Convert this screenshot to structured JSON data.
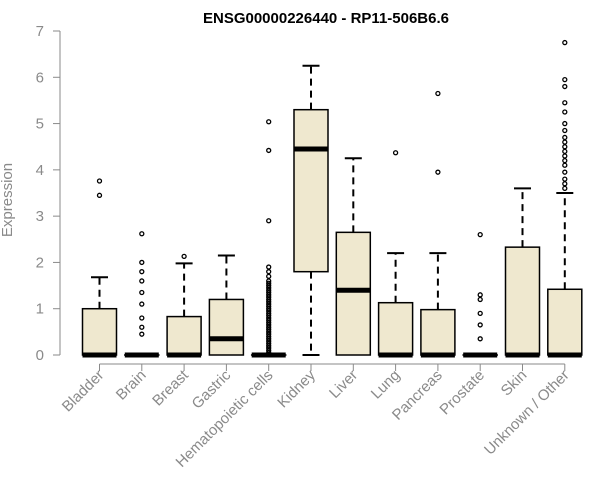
{
  "chart_data": {
    "type": "boxplot",
    "title": "ENSG00000226440 - RP11-506B6.6",
    "xlabel": "",
    "ylabel": "Expression",
    "ylim": [
      0,
      7
    ],
    "yticks": [
      0,
      1,
      2,
      3,
      4,
      5,
      6,
      7
    ],
    "grid": false,
    "box_fill": "#EFE8CF",
    "box_stroke": "#000000",
    "axis_color": "#8a8a8a",
    "categories": [
      "Bladder",
      "Brain",
      "Breast",
      "Gastric",
      "Hematopoietic cells",
      "Kidney",
      "Liver",
      "Lung",
      "Pancreas",
      "Prostate",
      "Skin",
      "Unknown / Other"
    ],
    "boxes": [
      {
        "category": "Bladder",
        "min": 0,
        "q1": 0,
        "median": 0,
        "q3": 1.0,
        "max": 1.68,
        "outliers": [
          3.45,
          3.76
        ]
      },
      {
        "category": "Brain",
        "min": 0,
        "q1": 0,
        "median": 0,
        "q3": 0,
        "max": 0,
        "outliers": [
          0.45,
          0.6,
          0.8,
          1.1,
          1.35,
          1.6,
          1.8,
          2.0,
          2.62
        ]
      },
      {
        "category": "Breast",
        "min": 0,
        "q1": 0,
        "median": 0,
        "q3": 0.83,
        "max": 1.98,
        "outliers": [
          2.13
        ]
      },
      {
        "category": "Gastric",
        "min": 0,
        "q1": 0,
        "median": 0.35,
        "q3": 1.2,
        "max": 2.15,
        "outliers": []
      },
      {
        "category": "Hematopoietic cells",
        "min": 0,
        "q1": 0,
        "median": 0,
        "q3": 0,
        "max": 0,
        "outliers": [
          0.05,
          0.1,
          0.15,
          0.2,
          0.25,
          0.3,
          0.35,
          0.4,
          0.45,
          0.5,
          0.55,
          0.6,
          0.65,
          0.7,
          0.75,
          0.8,
          0.85,
          0.9,
          0.95,
          1.0,
          1.05,
          1.1,
          1.15,
          1.2,
          1.25,
          1.3,
          1.35,
          1.4,
          1.45,
          1.5,
          1.55,
          1.6,
          1.7,
          1.8,
          1.9,
          2.9,
          4.42,
          5.04
        ]
      },
      {
        "category": "Kidney",
        "min": 0,
        "q1": 1.8,
        "median": 4.45,
        "q3": 5.3,
        "max": 6.25,
        "outliers": []
      },
      {
        "category": "Liver",
        "min": 0,
        "q1": 0,
        "median": 1.4,
        "q3": 2.65,
        "max": 4.25,
        "outliers": []
      },
      {
        "category": "Lung",
        "min": 0,
        "q1": 0,
        "median": 0,
        "q3": 1.13,
        "max": 2.2,
        "outliers": [
          4.37
        ]
      },
      {
        "category": "Pancreas",
        "min": 0,
        "q1": 0,
        "median": 0,
        "q3": 0.98,
        "max": 2.2,
        "outliers": [
          3.95,
          5.65
        ]
      },
      {
        "category": "Prostate",
        "min": 0,
        "q1": 0,
        "median": 0,
        "q3": 0,
        "max": 0,
        "outliers": [
          0.35,
          0.65,
          0.9,
          1.2,
          1.3,
          2.6
        ]
      },
      {
        "category": "Skin",
        "min": 0,
        "q1": 0,
        "median": 0,
        "q3": 2.33,
        "max": 3.6,
        "outliers": []
      },
      {
        "category": "Unknown / Other",
        "min": 0,
        "q1": 0,
        "median": 0,
        "q3": 1.42,
        "max": 3.5,
        "outliers": [
          3.6,
          3.7,
          3.8,
          3.95,
          4.1,
          4.2,
          4.3,
          4.4,
          4.5,
          4.6,
          4.7,
          4.85,
          5.0,
          5.25,
          5.45,
          5.8,
          5.95,
          6.75
        ]
      }
    ]
  }
}
